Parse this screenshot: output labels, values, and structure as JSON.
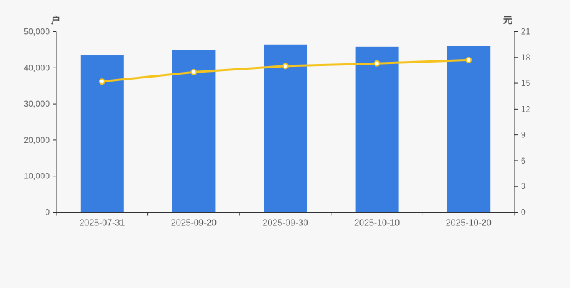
{
  "chart_data": {
    "type": "combo",
    "title": "",
    "categories": [
      "2025-07-31",
      "2025-09-20",
      "2025-09-30",
      "2025-10-10",
      "2025-10-20"
    ],
    "series": [
      {
        "name": "bar-series-households",
        "type": "bar",
        "axis": "left",
        "color": "#377ee0",
        "values": [
          43400,
          44800,
          46400,
          45800,
          46100
        ]
      },
      {
        "name": "line-series-price",
        "type": "line",
        "axis": "right",
        "color": "#f4c31f",
        "marker_fill": "#ffffff",
        "values": [
          15.2,
          16.3,
          17.0,
          17.3,
          17.7
        ]
      }
    ],
    "left_axis": {
      "unit": "户",
      "min": 0,
      "max": 50000,
      "tick_labels": [
        "0",
        "10,000",
        "20,000",
        "30,000",
        "40,000",
        "50,000"
      ]
    },
    "right_axis": {
      "unit": "元",
      "min": 0,
      "max": 21,
      "tick_labels": [
        "0",
        "3",
        "6",
        "9",
        "12",
        "15",
        "18",
        "21"
      ]
    },
    "grid": false,
    "legend": null,
    "colors": {
      "background": "#f7f7f7",
      "axis": "#333333",
      "tick_text": "#666666",
      "category_text": "#555555",
      "unit_text": "#4d4d4d"
    }
  }
}
